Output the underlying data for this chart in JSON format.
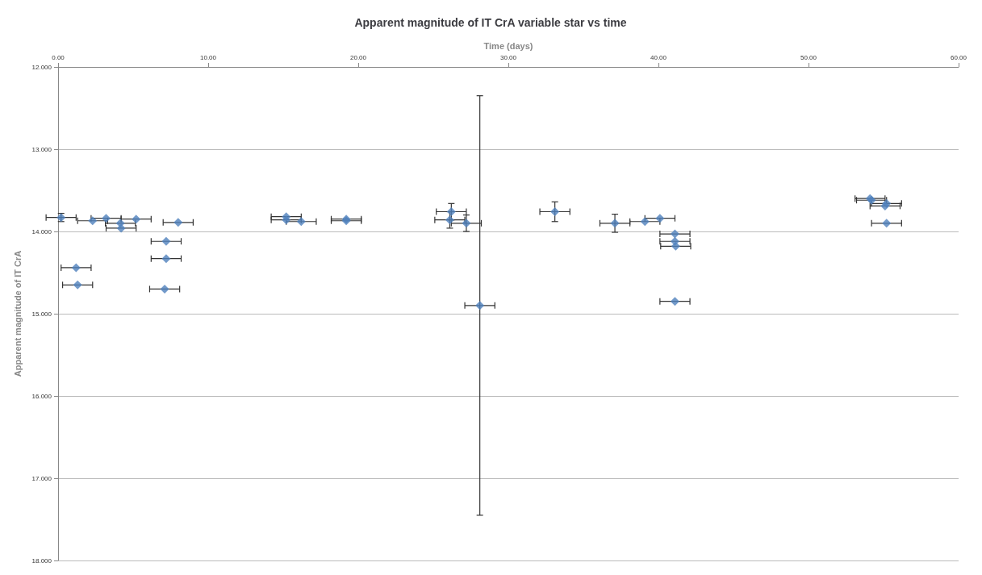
{
  "chart_data": {
    "type": "scatter",
    "title": "Apparent magnitude of IT CrA variable star vs time",
    "xlabel": "Time (days)",
    "ylabel": "Apparent magnitude of IT CrA",
    "xlim": [
      0,
      60
    ],
    "xticks": [
      {
        "value": 0,
        "label": "0.00"
      },
      {
        "value": 10,
        "label": "10.00"
      },
      {
        "value": 20,
        "label": "20.00"
      },
      {
        "value": 30,
        "label": "30.00"
      },
      {
        "value": 40,
        "label": "40.00"
      },
      {
        "value": 50,
        "label": "50.00"
      },
      {
        "value": 60,
        "label": "60.00"
      }
    ],
    "ylim": [
      18,
      12
    ],
    "yticks": [
      {
        "value": 12,
        "label": "12.000"
      },
      {
        "value": 13,
        "label": "13.000"
      },
      {
        "value": 14,
        "label": "14.000"
      },
      {
        "value": 15,
        "label": "15.000"
      },
      {
        "value": 16,
        "label": "16.000"
      },
      {
        "value": 17,
        "label": "17.000"
      },
      {
        "value": 18,
        "label": "18.000"
      }
    ],
    "grid": "y",
    "marker": "diamond",
    "series": [
      {
        "color": "#4f81bd",
        "x": [
          0.2,
          2.3,
          3.2,
          4.15,
          4.2,
          5.2,
          1.2,
          1.3,
          8.0,
          7.2,
          7.2,
          7.1,
          15.2,
          15.2,
          16.2,
          19.2,
          19.2,
          26.2,
          26.1,
          27.2,
          28.1,
          33.1,
          37.1,
          39.1,
          40.1,
          41.1,
          41.1,
          41.15,
          41.1,
          54.2,
          54.1,
          55.1,
          55.2,
          55.2
        ],
        "values": [
          13.83,
          13.87,
          13.84,
          13.9,
          13.96,
          13.85,
          14.44,
          14.65,
          13.89,
          14.12,
          14.33,
          14.7,
          13.82,
          13.86,
          13.88,
          13.85,
          13.87,
          13.76,
          13.86,
          13.9,
          14.9,
          13.76,
          13.9,
          13.88,
          13.84,
          14.03,
          14.12,
          14.18,
          14.85,
          13.62,
          13.6,
          13.69,
          13.66,
          13.9
        ],
        "errors": [
          0.05,
          null,
          null,
          null,
          null,
          null,
          null,
          null,
          null,
          null,
          null,
          null,
          null,
          null,
          null,
          null,
          null,
          0.1,
          0.1,
          0.1,
          2.55,
          0.12,
          0.11,
          null,
          null,
          null,
          null,
          null,
          null,
          null,
          null,
          null,
          null,
          null
        ],
        "xerrors": [
          1,
          1,
          1,
          1,
          1,
          1,
          1,
          1,
          1,
          1,
          1,
          1,
          1,
          1,
          1,
          1,
          1,
          1,
          1,
          1,
          1,
          1,
          1,
          1,
          1,
          1,
          1,
          1,
          1,
          1,
          1,
          1,
          1,
          1
        ]
      }
    ]
  }
}
